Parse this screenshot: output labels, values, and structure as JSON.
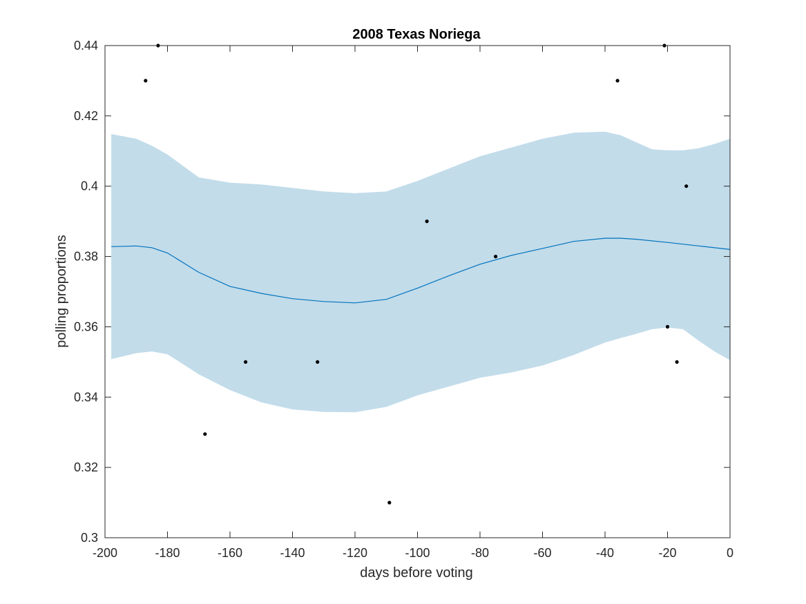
{
  "chart_data": {
    "type": "line",
    "title": "2008 Texas Noriega",
    "xlabel": "days before voting",
    "ylabel": "polling proportions",
    "xlim": [
      -200,
      0
    ],
    "ylim": [
      0.3,
      0.44
    ],
    "xticks": [
      -200,
      -180,
      -160,
      -140,
      -120,
      -100,
      -80,
      -60,
      -40,
      -20,
      0
    ],
    "xtick_labels": [
      "-200",
      "-180",
      "-160",
      "-140",
      "-120",
      "-100",
      "-80",
      "-60",
      "-40",
      "-20",
      "0"
    ],
    "yticks": [
      0.3,
      0.32,
      0.34,
      0.36,
      0.38,
      0.4,
      0.42,
      0.44
    ],
    "ytick_labels": [
      "0.3",
      "0.32",
      "0.34",
      "0.36",
      "0.38",
      "0.4",
      "0.42",
      "0.44"
    ],
    "grid": false,
    "colors": {
      "mean_line": "#0072BD",
      "band": "#c2dcea",
      "points": "#000000"
    },
    "band": {
      "x": [
        -198,
        -190,
        -185,
        -180,
        -170,
        -160,
        -150,
        -140,
        -130,
        -120,
        -110,
        -100,
        -90,
        -80,
        -70,
        -60,
        -50,
        -40,
        -35,
        -30,
        -25,
        -20,
        -15,
        -10,
        -5,
        0
      ],
      "upper": [
        0.4148,
        0.4135,
        0.4115,
        0.409,
        0.4025,
        0.401,
        0.4005,
        0.3995,
        0.3985,
        0.398,
        0.3985,
        0.4015,
        0.405,
        0.4085,
        0.411,
        0.4135,
        0.4152,
        0.4155,
        0.4145,
        0.4125,
        0.4105,
        0.4102,
        0.4102,
        0.4108,
        0.412,
        0.4135
      ],
      "lower": [
        0.3508,
        0.3525,
        0.353,
        0.3522,
        0.3465,
        0.342,
        0.3385,
        0.3365,
        0.3358,
        0.3357,
        0.3372,
        0.3405,
        0.343,
        0.3455,
        0.347,
        0.349,
        0.352,
        0.3555,
        0.3568,
        0.358,
        0.3593,
        0.3598,
        0.3593,
        0.356,
        0.353,
        0.3505
      ]
    },
    "series": [
      {
        "type": "line",
        "x": [
          -198,
          -190,
          -185,
          -180,
          -170,
          -160,
          -150,
          -140,
          -130,
          -120,
          -110,
          -100,
          -90,
          -80,
          -70,
          -60,
          -50,
          -40,
          -35,
          -30,
          -20,
          -10,
          0
        ],
        "values": [
          0.3828,
          0.383,
          0.3825,
          0.381,
          0.3755,
          0.3715,
          0.3695,
          0.368,
          0.3672,
          0.3668,
          0.3678,
          0.371,
          0.3745,
          0.3778,
          0.3803,
          0.3823,
          0.3843,
          0.3852,
          0.3852,
          0.3849,
          0.384,
          0.383,
          0.382
        ]
      },
      {
        "type": "scatter",
        "x": [
          -187,
          -183,
          -168,
          -155,
          -132,
          -109,
          -97,
          -75,
          -36,
          -21,
          -20,
          -17,
          -14
        ],
        "values": [
          0.43,
          0.44,
          0.3295,
          0.35,
          0.35,
          0.31,
          0.39,
          0.38,
          0.43,
          0.44,
          0.36,
          0.35,
          0.4
        ]
      }
    ]
  }
}
